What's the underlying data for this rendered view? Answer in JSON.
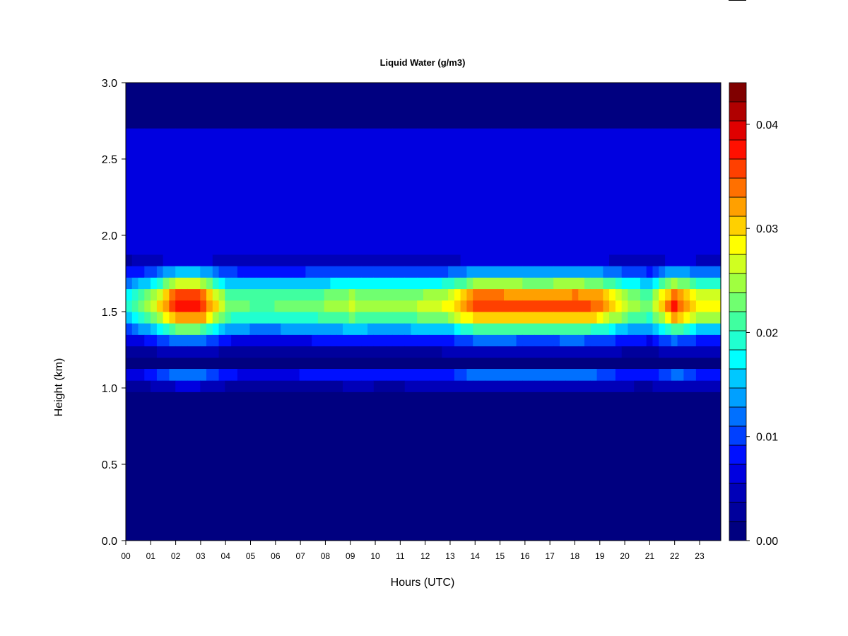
{
  "chart_data": {
    "type": "heatmap",
    "title": "Liquid Water (g/m3)",
    "xlabel": "Hours (UTC)",
    "ylabel": "Height (km)",
    "x_ticks": [
      "00",
      "01",
      "02",
      "03",
      "04",
      "05",
      "06",
      "07",
      "08",
      "09",
      "10",
      "11",
      "12",
      "13",
      "14",
      "15",
      "16",
      "17",
      "18",
      "19",
      "20",
      "21",
      "22",
      "23"
    ],
    "xlim": [
      0,
      23.85
    ],
    "y_ticks": [
      "0.0",
      "0.5",
      "1.0",
      "1.5",
      "2.0",
      "2.5",
      "3.0"
    ],
    "ylim": [
      0,
      3.0
    ],
    "colorbar": {
      "ticks": [
        "0.00",
        "0.01",
        "0.02",
        "0.03",
        "0.04"
      ],
      "range": [
        0,
        0.044
      ],
      "levels": 22,
      "colors": [
        "#000080",
        "#00009c",
        "#0000b8",
        "#0000e0",
        "#0010ff",
        "#0040ff",
        "#0070ff",
        "#00a0ff",
        "#00c8ff",
        "#00ffff",
        "#20ffd0",
        "#40ffa0",
        "#70ff70",
        "#a0ff40",
        "#d0ff20",
        "#ffff00",
        "#ffd000",
        "#ffa000",
        "#ff7000",
        "#ff4000",
        "#ff1000",
        "#e00000",
        "#b00000",
        "#800000"
      ]
    },
    "profile": {
      "base_km": 1.1,
      "top_km": 2.72,
      "peak_km": 1.55,
      "peak_value_by_hour": [
        0.018,
        0.025,
        0.038,
        0.038,
        0.024,
        0.022,
        0.022,
        0.023,
        0.024,
        0.026,
        0.025,
        0.025,
        0.026,
        0.028,
        0.036,
        0.036,
        0.035,
        0.035,
        0.036,
        0.034,
        0.026,
        0.023,
        0.037,
        0.028
      ]
    }
  }
}
